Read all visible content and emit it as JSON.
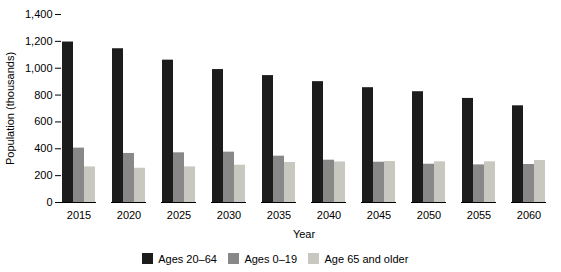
{
  "chart_data": {
    "type": "bar",
    "categories": [
      "2015",
      "2020",
      "2025",
      "2030",
      "2035",
      "2040",
      "2045",
      "2050",
      "2055",
      "2060"
    ],
    "series": [
      {
        "name": "Ages 20–64",
        "color": "#1c1c1c",
        "values": [
          1195,
          1145,
          1060,
          990,
          945,
          900,
          855,
          825,
          775,
          720
        ]
      },
      {
        "name": "Ages 0–19",
        "color": "#888888",
        "values": [
          405,
          365,
          370,
          375,
          345,
          315,
          300,
          285,
          280,
          283
        ]
      },
      {
        "name": "Age 65 and older",
        "color": "#c8c8c0",
        "values": [
          265,
          255,
          265,
          278,
          298,
          302,
          305,
          303,
          303,
          313
        ]
      }
    ],
    "xlabel": "Year",
    "ylabel": "Population (thousands)",
    "ylim": [
      0,
      1400
    ],
    "yticks": [
      0,
      200,
      400,
      600,
      800,
      {
        "value": 1000,
        "label": "1,000"
      },
      {
        "value": 1200,
        "label": "1,200"
      },
      {
        "value": 1400,
        "label": "1,400"
      }
    ],
    "grid": false,
    "legend": "bottom"
  }
}
